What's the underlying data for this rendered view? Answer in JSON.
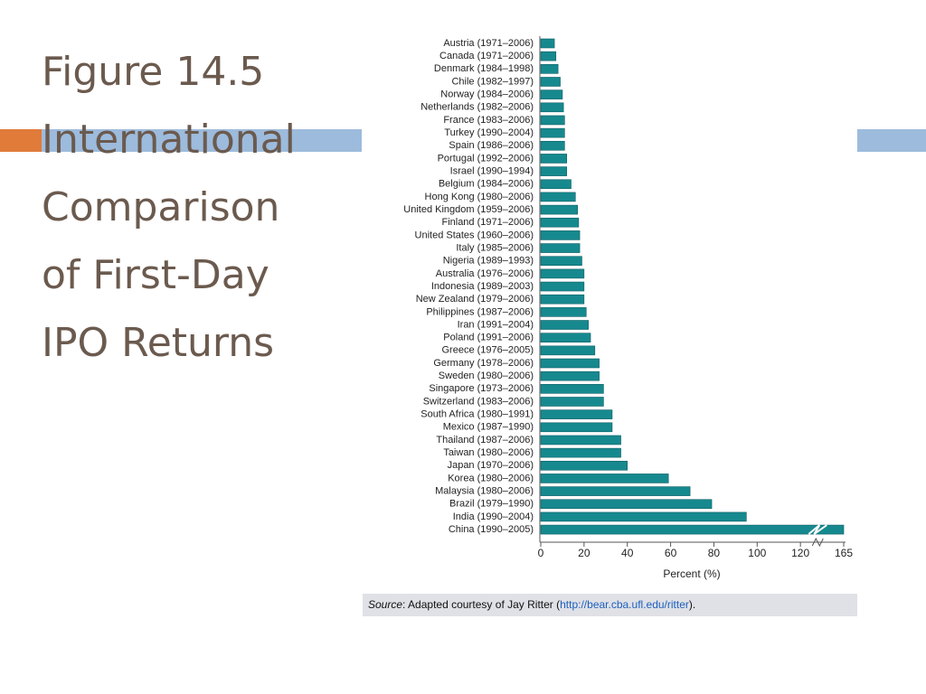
{
  "chart_data": {
    "type": "bar",
    "orientation": "horizontal",
    "title": "Figure 14.5 International Comparison of First-Day IPO Returns",
    "x_label": "Percent (%)",
    "categories": [
      "Austria (1971–2006)",
      "Canada (1971–2006)",
      "Denmark  (1984–1998)",
      "Chile (1982–1997)",
      "Norway (1984–2006)",
      "Netherlands (1982–2006)",
      "France (1983–2006)",
      "Turkey (1990–2004)",
      "Spain (1986–2006)",
      "Portugal (1992–2006)",
      "Israel (1990–1994)",
      "Belgium (1984–2006)",
      "Hong Kong (1980–2006)",
      "United Kingdom (1959–2006)",
      "Finland (1971–2006)",
      "United States (1960–2006)",
      "Italy (1985–2006)",
      "Nigeria (1989–1993)",
      "Australia (1976–2006)",
      "Indonesia (1989–2003)",
      "New Zealand (1979–2006)",
      "Philippines (1987–2006)",
      "Iran (1991–2004)",
      "Poland (1991–2006)",
      "Greece (1976–2005)",
      "Germany (1978–2006)",
      "Sweden (1980–2006)",
      "Singapore (1973–2006)",
      "Switzerland (1983–2006)",
      "South Africa (1980–1991)",
      "Mexico (1987–1990)",
      "Thailand (1987–2006)",
      "Taiwan (1980–2006)",
      "Japan (1970–2006)",
      "Korea (1980–2006)",
      "Malaysia (1980–2006)",
      "Brazil (1979–1990)",
      "India (1990–2004)",
      "China (1990–2005)"
    ],
    "values": [
      6.3,
      7,
      8,
      9,
      10,
      10.5,
      11,
      11,
      11,
      12,
      12,
      14,
      16,
      17,
      17.5,
      18,
      18,
      19,
      20,
      20,
      20,
      21,
      22,
      23,
      25,
      27,
      27,
      29,
      29,
      33,
      33,
      37,
      37,
      40,
      59,
      69,
      79,
      95,
      165
    ],
    "color": "#16898f",
    "xlim": [
      0,
      165
    ],
    "xticks": [
      0,
      20,
      40,
      60,
      80,
      100,
      120,
      165
    ],
    "axis_break": true,
    "source": {
      "label": "Source",
      "text": ": Adapted courtesy of Jay Ritter (",
      "url": "http://bear.cba.ufl.edu/ritter",
      "end": ")."
    }
  }
}
